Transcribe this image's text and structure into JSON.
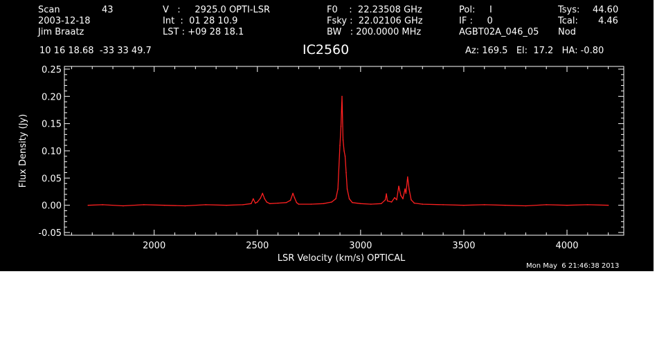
{
  "header": {
    "scan_label": "Scan",
    "scan_number": "43",
    "date": "2003-12-18",
    "observer": "Jim Braatz",
    "v_line": "V   :     2925.0 OPTI-LSR",
    "int_line": "Int  :  01 28 10.9",
    "lst_line": "LST : +09 28 18.1",
    "f0_line": "F0    :  22.23508 GHz",
    "fsky_line": "Fsky :  22.02106 GHz",
    "bw_line": "BW   : 200.0000 MHz",
    "pol_line": "Pol:     I",
    "if_line": "IF :     0",
    "project": "AGBT02A_046_05",
    "tsys_label": "Tsys:",
    "tsys_value": "44.60",
    "tcal_label": "Tcal:",
    "tcal_value": "4.46",
    "mode": "Nod",
    "coords": "10 16 18.68  -33 33 49.7",
    "source": "IC2560",
    "az_el_ha": "Az: 169.5   El:  17.2   HA: -0.80"
  },
  "footer": {
    "timestamp": "Mon May  6 21:46:38 2013"
  },
  "colors": {
    "background": "#000000",
    "axes": "#ffffff",
    "trace": "#ff2020"
  },
  "chart_data": {
    "type": "line",
    "title": "IC2560",
    "xlabel": "LSR Velocity (km/s) OPTICAL",
    "ylabel": "Flux Density (Jy)",
    "xlim": [
      1565,
      4275
    ],
    "ylim": [
      -0.055,
      0.255
    ],
    "x_ticks": [
      2000,
      2500,
      3000,
      3500,
      4000
    ],
    "x_tick_labels": [
      "2000",
      "2500",
      "3000",
      "3500",
      "4000"
    ],
    "y_ticks": [
      -0.05,
      0.0,
      0.05,
      0.1,
      0.15,
      0.2,
      0.25
    ],
    "y_tick_labels": [
      "-0.05",
      "0.00",
      "0.05",
      "0.10",
      "0.15",
      "0.20",
      "0.25"
    ],
    "grid": false,
    "series": [
      {
        "x": [
          1680,
          1750,
          1850,
          1950,
          2050,
          2150,
          2250,
          2350,
          2430,
          2470,
          2480,
          2490,
          2500,
          2515,
          2525,
          2535,
          2545,
          2560,
          2600,
          2640,
          2660,
          2672,
          2680,
          2690,
          2700,
          2760,
          2820,
          2860,
          2880,
          2890,
          2900,
          2905,
          2910,
          2915,
          2920,
          2925,
          2930,
          2935,
          2945,
          2960,
          3000,
          3050,
          3100,
          3120,
          3125,
          3130,
          3150,
          3165,
          3175,
          3185,
          3195,
          3205,
          3215,
          3220,
          3228,
          3235,
          3245,
          3260,
          3300,
          3400,
          3500,
          3600,
          3700,
          3800,
          3900,
          4000,
          4100,
          4200
        ],
        "y": [
          0.0,
          0.001,
          -0.001,
          0.001,
          0.0,
          -0.001,
          0.001,
          0.0,
          0.001,
          0.003,
          0.012,
          0.004,
          0.006,
          0.013,
          0.022,
          0.012,
          0.006,
          0.003,
          0.004,
          0.005,
          0.009,
          0.022,
          0.014,
          0.005,
          0.002,
          0.002,
          0.003,
          0.006,
          0.012,
          0.03,
          0.11,
          0.145,
          0.2,
          0.12,
          0.1,
          0.09,
          0.06,
          0.03,
          0.012,
          0.005,
          0.003,
          0.002,
          0.003,
          0.01,
          0.021,
          0.008,
          0.006,
          0.014,
          0.01,
          0.035,
          0.018,
          0.012,
          0.03,
          0.022,
          0.052,
          0.03,
          0.01,
          0.004,
          0.002,
          0.001,
          0.0,
          0.001,
          0.0,
          -0.001,
          0.001,
          0.0,
          0.001,
          0.0
        ]
      }
    ]
  }
}
